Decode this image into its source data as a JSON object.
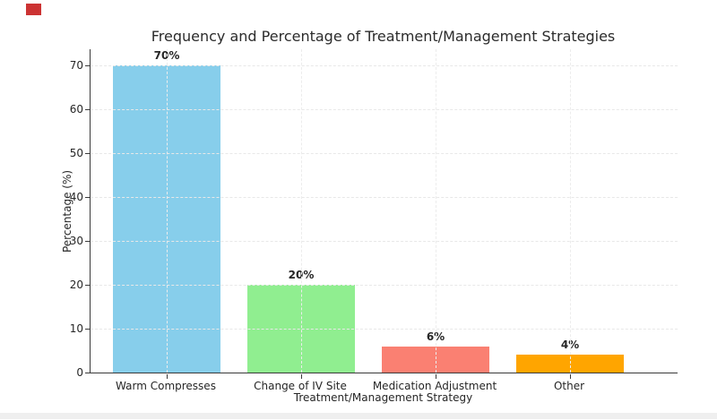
{
  "page": {
    "marker_color": "#cc3333",
    "bottom_band_color": "#efefef",
    "background_color": "#ffffff"
  },
  "chart_data": {
    "type": "bar",
    "title": "Frequency and Percentage of Treatment/Management Strategies",
    "xlabel": "Treatment/Management Strategy",
    "ylabel": "Percentage (%)",
    "categories": [
      "Warm Compresses",
      "Change of IV Site",
      "Medication Adjustment",
      "Other"
    ],
    "values": [
      70,
      20,
      6,
      4
    ],
    "value_labels": [
      "70%",
      "20%",
      "6%",
      "4%"
    ],
    "bar_colors": [
      "#87CEEB",
      "#90EE90",
      "#FA8072",
      "#FFA500"
    ],
    "yticks": [
      0,
      10,
      20,
      30,
      40,
      50,
      60,
      70
    ],
    "ylim": [
      0,
      73.5
    ],
    "grid": true,
    "legend": "none",
    "text_color": "#262626",
    "spine_color": "#3a3a3a",
    "gridline_color": "#e8e8e8"
  }
}
